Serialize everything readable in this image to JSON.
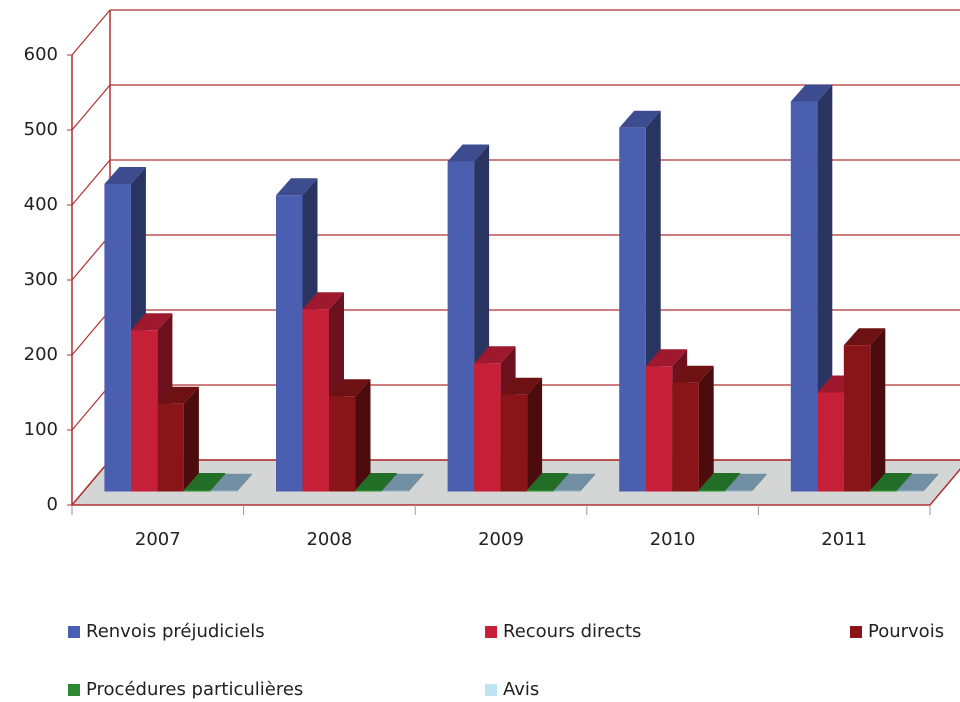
{
  "chart_data": {
    "type": "bar3d",
    "categories": [
      "2007",
      "2008",
      "2009",
      "2010",
      "2011"
    ],
    "series": [
      {
        "name": "Renvois préjudiciels",
        "color": "#4b5fb1",
        "values": [
          410,
          395,
          440,
          485,
          520
        ]
      },
      {
        "name": "Recours directs",
        "color": "#c61f38",
        "values": [
          215,
          243,
          171,
          167,
          132
        ]
      },
      {
        "name": "Pourvois",
        "color": "#8a1518",
        "values": [
          117,
          127,
          129,
          145,
          195
        ]
      },
      {
        "name": "Procédures particulières",
        "color": "#2b8a2f",
        "values": [
          2,
          2,
          2,
          2,
          2
        ]
      },
      {
        "name": "Avis",
        "color": "#8fb4cc",
        "values": [
          1,
          1,
          1,
          1,
          1
        ]
      }
    ],
    "ylim": [
      0,
      600
    ],
    "yticks": [
      0,
      100,
      200,
      300,
      400,
      500,
      600
    ],
    "grid": true
  }
}
